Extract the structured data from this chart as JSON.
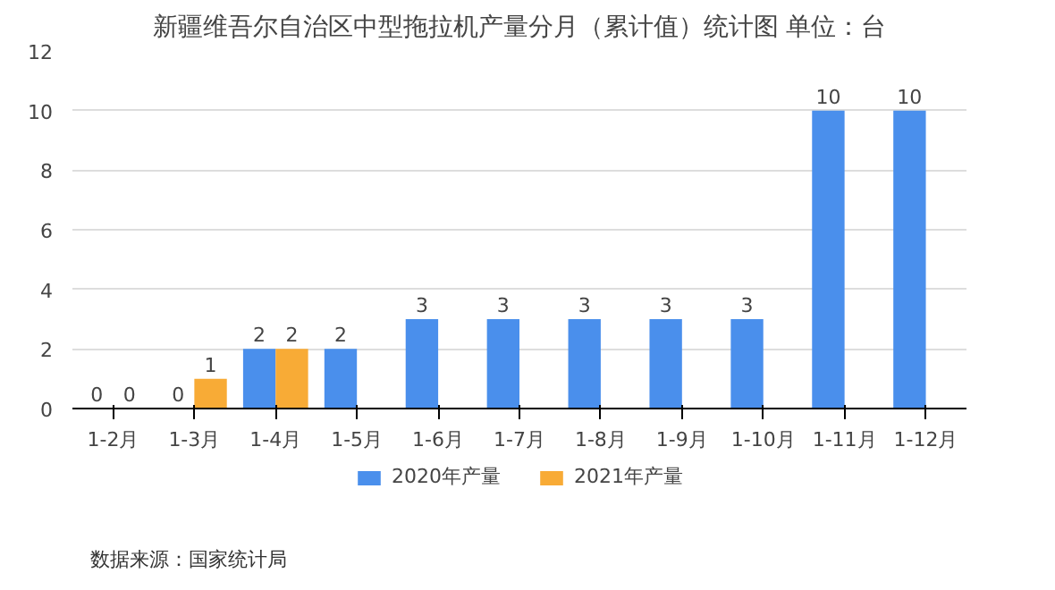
{
  "chart_data": {
    "type": "bar",
    "title": "新疆维吾尔自治区中型拖拉机产量分月（累计值）统计图 单位：台",
    "categories": [
      "1-2月",
      "1-3月",
      "1-4月",
      "1-5月",
      "1-6月",
      "1-7月",
      "1-8月",
      "1-9月",
      "1-10月",
      "1-11月",
      "1-12月"
    ],
    "series": [
      {
        "name": "2020年产量",
        "color": "#4a8fec",
        "values": [
          0,
          0,
          2,
          2,
          3,
          3,
          3,
          3,
          3,
          10,
          10
        ]
      },
      {
        "name": "2021年产量",
        "color": "#f8ab36",
        "values": [
          0,
          1,
          2,
          null,
          null,
          null,
          null,
          null,
          null,
          null,
          null
        ]
      }
    ],
    "ylim": [
      0,
      12
    ],
    "yticks": [
      0,
      2,
      4,
      6,
      8,
      10,
      12
    ],
    "grid": "y",
    "legend": "bottom",
    "data_labels": true,
    "annotations": [
      "数据来源：国家统计局"
    ]
  }
}
